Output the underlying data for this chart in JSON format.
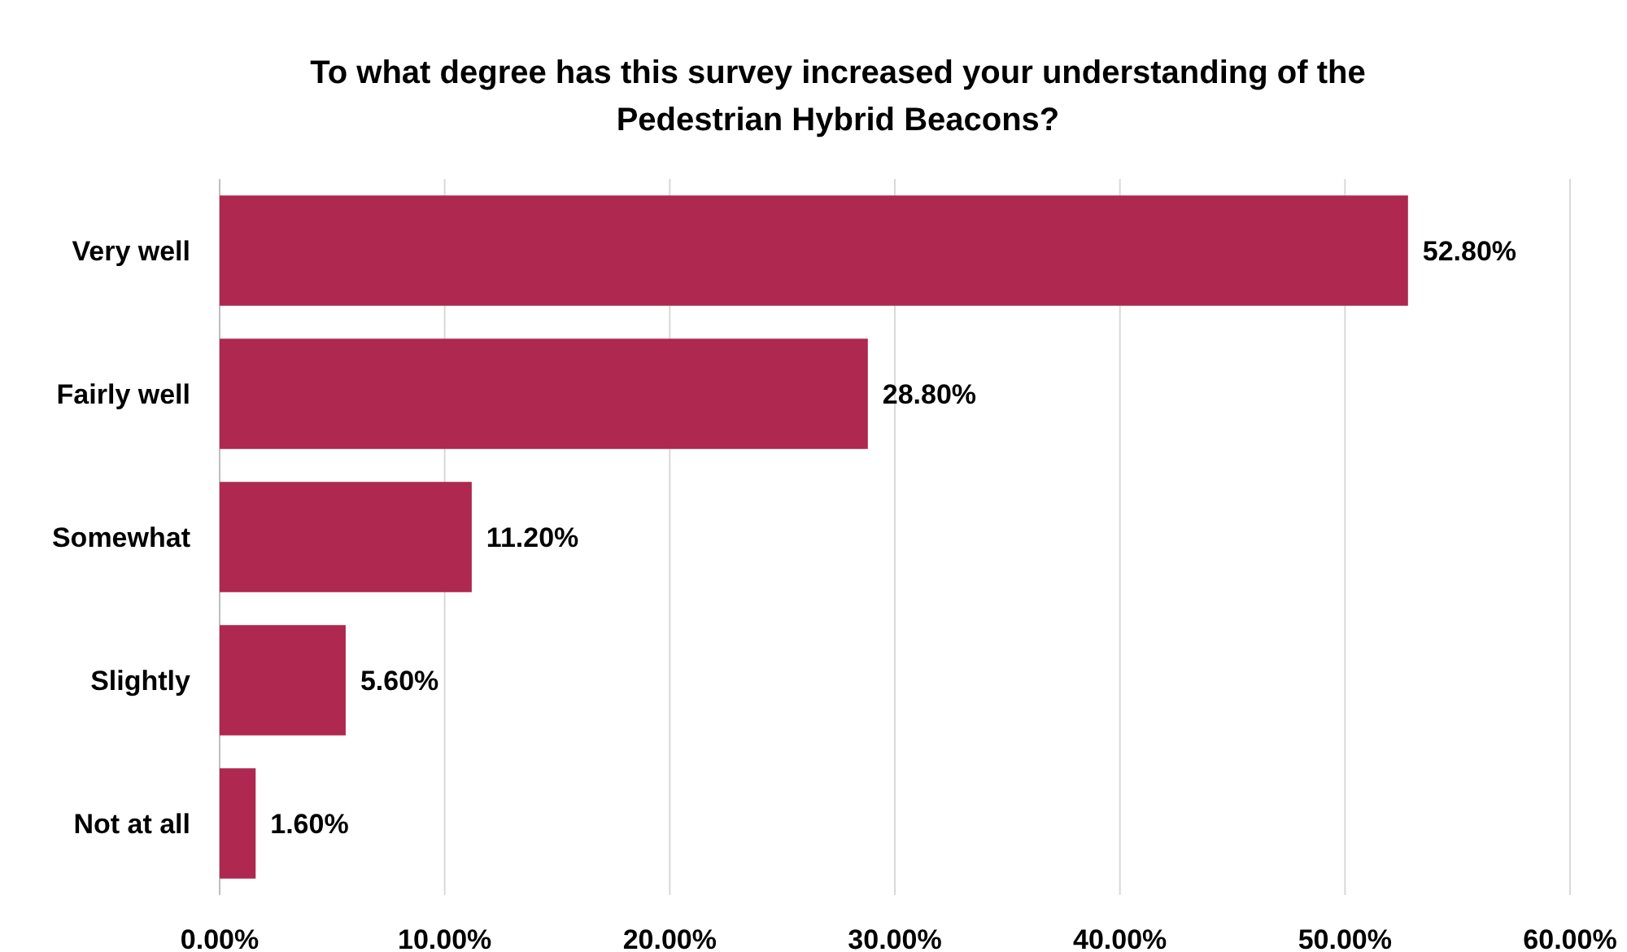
{
  "chart_data": {
    "type": "bar",
    "orientation": "horizontal",
    "title": "To what degree has this survey increased your understanding of the Pedestrian Hybrid Beacons?",
    "categories": [
      "Very well",
      "Fairly well",
      "Somewhat",
      "Slightly",
      "Not at all"
    ],
    "values": [
      52.8,
      28.8,
      11.2,
      5.6,
      1.6
    ],
    "value_labels": [
      "52.80%",
      "28.80%",
      "11.20%",
      "5.60%",
      "1.60%"
    ],
    "color": "#ae2850",
    "xlim": [
      0,
      60
    ],
    "xticks": [
      {
        "value": 0,
        "label": "0.00%"
      },
      {
        "value": 10,
        "label": "10.00%"
      },
      {
        "value": 20,
        "label": "20.00%"
      },
      {
        "value": 30,
        "label": "30.00%"
      },
      {
        "value": 40,
        "label": "40.00%"
      },
      {
        "value": 50,
        "label": "50.00%"
      },
      {
        "value": 60,
        "label": "60.00%"
      }
    ],
    "grid": "x"
  }
}
